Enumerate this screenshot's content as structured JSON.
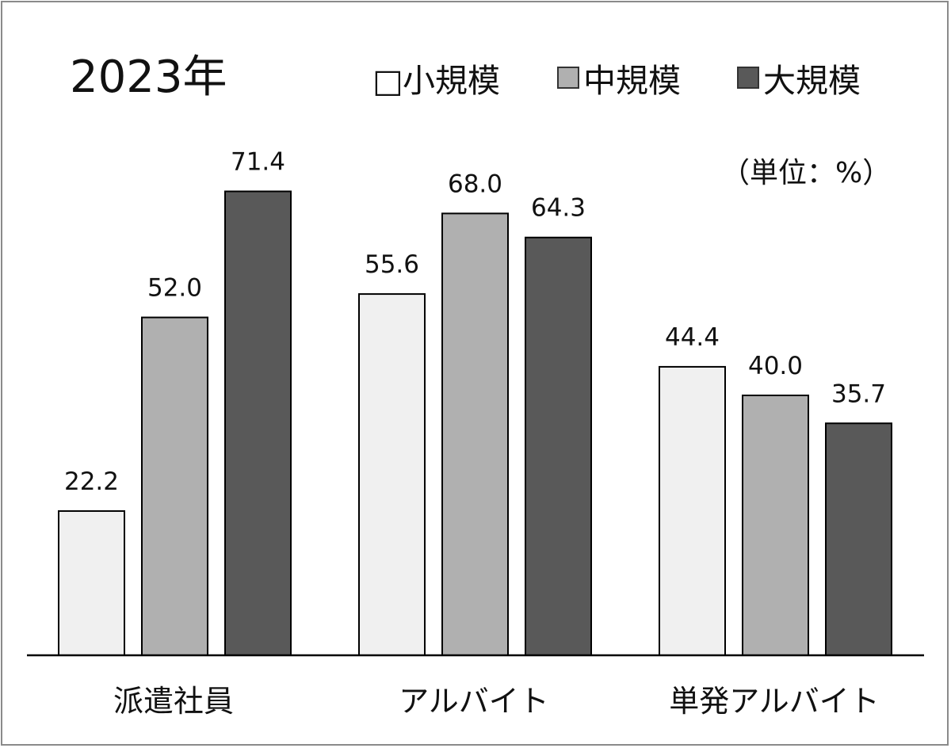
{
  "chart_data": {
    "type": "bar",
    "title": "2023年",
    "unit_label": "（単位：%）",
    "categories": [
      "派遣社員",
      "アルバイト",
      "単発アルバイト"
    ],
    "series": [
      {
        "name": "小規模",
        "color": "#f0f0f0",
        "values": [
          22.2,
          55.6,
          44.4
        ]
      },
      {
        "name": "中規模",
        "color": "#b0b0b0",
        "values": [
          52.0,
          68.0,
          40.0
        ]
      },
      {
        "name": "大規模",
        "color": "#595959",
        "values": [
          71.4,
          64.3,
          35.7
        ]
      }
    ],
    "value_labels": [
      [
        "22.2",
        "55.6",
        "44.4"
      ],
      [
        "52.0",
        "68.0",
        "40.0"
      ],
      [
        "71.4",
        "64.3",
        "35.7"
      ]
    ],
    "legend_marker": "□",
    "ylim": [
      0,
      100
    ],
    "grid": false,
    "legend_position": "top-right"
  }
}
